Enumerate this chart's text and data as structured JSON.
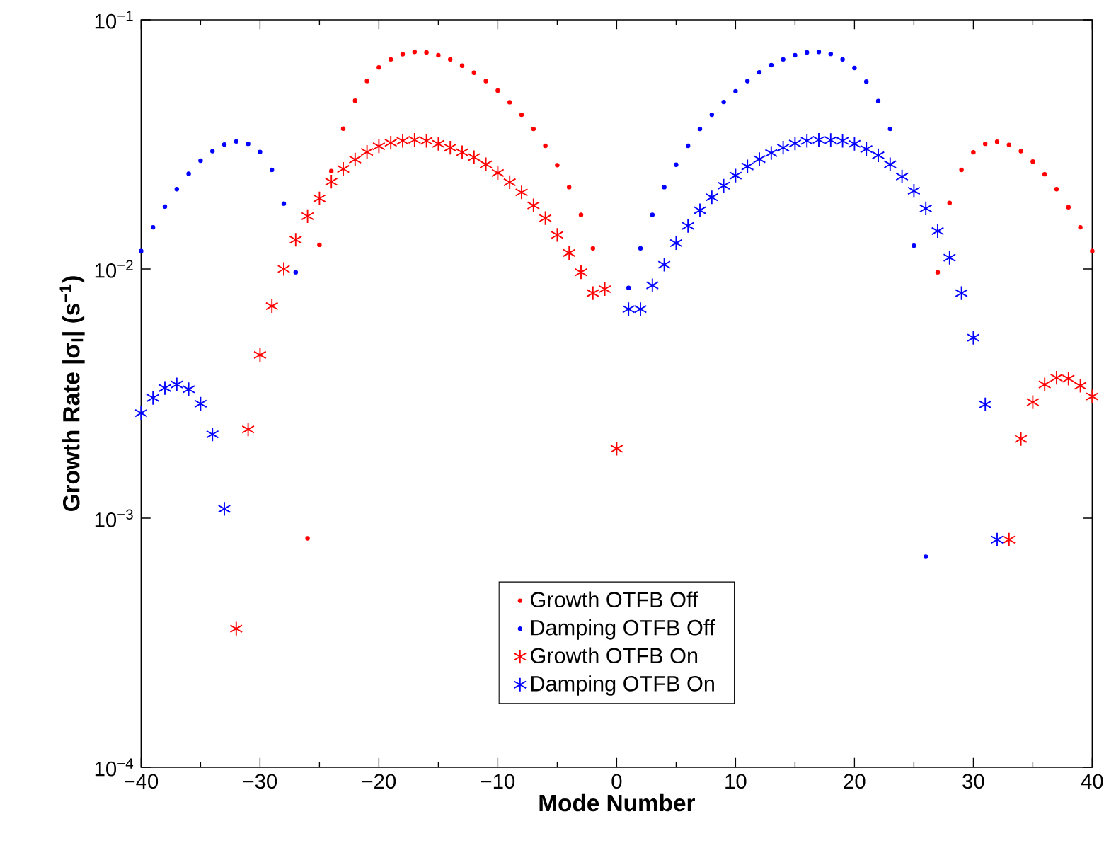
{
  "chart_data": {
    "type": "scatter",
    "xlabel": "Mode Number",
    "ylabel": "Growth Rate |σ$_{I}$| (s$^{−1}$)",
    "log": "y",
    "grid": false,
    "legend": "bottom",
    "xlim": [
      -40,
      40
    ],
    "ylim": [
      0.0001,
      0.1
    ],
    "xticks": [
      {
        "value": -40,
        "label": "−40"
      },
      {
        "value": -30,
        "label": "−30"
      },
      {
        "value": -20,
        "label": "−20"
      },
      {
        "value": -10,
        "label": "−10"
      },
      0,
      10,
      20,
      30,
      40
    ],
    "yticks": [
      {
        "value": 0.0001,
        "label": "10$^{−4}$"
      },
      {
        "value": 0.001,
        "label": "10$^{−3}$"
      },
      {
        "value": 0.01,
        "label": "10$^{−2}$"
      },
      {
        "value": 0.1,
        "label": "10$^{−1}$"
      }
    ],
    "series": [
      {
        "name": "Growth OTFB Off",
        "color": "#ff0000",
        "marker": "circle",
        "x": [
          -26,
          -25,
          -24,
          -23,
          -22,
          -21,
          -20,
          -19,
          -18,
          -17,
          -16,
          -15,
          -14,
          -13,
          -12,
          -11,
          -10,
          -9,
          -8,
          -7,
          -6,
          -5,
          -4,
          -3,
          -2,
          27,
          28,
          29,
          30,
          31,
          32,
          33,
          34,
          35,
          36,
          37,
          38,
          39,
          40
        ],
        "values": [
          0.00083,
          0.0125,
          0.0247,
          0.0366,
          0.0474,
          0.0568,
          0.0644,
          0.0694,
          0.0728,
          0.0744,
          0.074,
          0.0721,
          0.0694,
          0.0655,
          0.0613,
          0.0568,
          0.052,
          0.0467,
          0.0416,
          0.0365,
          0.0312,
          0.0261,
          0.0213,
          0.0165,
          0.0121,
          0.0097,
          0.0184,
          0.025,
          0.0294,
          0.0318,
          0.0324,
          0.0315,
          0.0297,
          0.027,
          0.024,
          0.0209,
          0.0177,
          0.0147,
          0.0118
        ]
      },
      {
        "name": "Damping OTFB Off",
        "color": "#0000ff",
        "marker": "circle",
        "x": [
          -40,
          -39,
          -38,
          -37,
          -36,
          -35,
          -34,
          -33,
          -32,
          -31,
          -30,
          -29,
          -28,
          -27,
          1,
          2,
          3,
          4,
          5,
          6,
          7,
          8,
          9,
          10,
          11,
          12,
          13,
          14,
          15,
          16,
          17,
          18,
          19,
          20,
          21,
          22,
          23,
          24,
          25,
          26
        ],
        "values": [
          0.0118,
          0.0147,
          0.0178,
          0.0209,
          0.0241,
          0.0272,
          0.0297,
          0.0316,
          0.0325,
          0.0318,
          0.0295,
          0.025,
          0.0183,
          0.0097,
          0.0084,
          0.0121,
          0.0165,
          0.0213,
          0.0262,
          0.0312,
          0.0365,
          0.0416,
          0.0468,
          0.0517,
          0.0568,
          0.0616,
          0.0658,
          0.0694,
          0.0721,
          0.074,
          0.0744,
          0.073,
          0.0694,
          0.0641,
          0.0565,
          0.0472,
          0.0365,
          null,
          0.0124,
          0.0007
        ]
      },
      {
        "name": "Growth OTFB On",
        "color": "#ff0000",
        "marker": "cross",
        "x": [
          -32,
          -31,
          -30,
          -29,
          -28,
          -27,
          -26,
          -25,
          -24,
          -23,
          -22,
          -21,
          -20,
          -19,
          -18,
          -17,
          -16,
          -15,
          -14,
          -13,
          -12,
          -11,
          -10,
          -9,
          -8,
          -7,
          -6,
          -5,
          -4,
          -3,
          -2,
          -1,
          0,
          33,
          34,
          35,
          36,
          37,
          38,
          39,
          40
        ],
        "values": [
          0.00036,
          0.00227,
          0.00452,
          0.0071,
          0.01,
          0.0131,
          0.0163,
          0.0192,
          0.0224,
          0.0252,
          0.0275,
          0.0295,
          0.0311,
          0.0321,
          0.0327,
          0.033,
          0.0327,
          0.0318,
          0.0307,
          0.0294,
          0.0281,
          0.0263,
          0.0243,
          0.0223,
          0.0203,
          0.018,
          0.016,
          0.0137,
          0.0116,
          0.0097,
          0.008,
          0.0083,
          0.0019,
          0.00082,
          0.00208,
          0.00292,
          0.00344,
          0.00366,
          0.00363,
          0.0034,
          0.00308
        ]
      },
      {
        "name": "Damping OTFB On",
        "color": "#0000ff",
        "marker": "cross",
        "x": [
          -40,
          -39,
          -38,
          -37,
          -36,
          -35,
          -34,
          -33,
          1,
          2,
          3,
          4,
          5,
          6,
          7,
          8,
          9,
          10,
          11,
          12,
          13,
          14,
          15,
          16,
          17,
          18,
          19,
          20,
          21,
          22,
          23,
          24,
          25,
          26,
          27,
          28,
          29,
          30,
          31,
          32
        ],
        "values": [
          0.00264,
          0.00304,
          0.00333,
          0.00344,
          0.00329,
          0.00288,
          0.00217,
          0.00109,
          0.0069,
          0.0069,
          0.0086,
          0.0104,
          0.0127,
          0.0149,
          0.0172,
          0.0194,
          0.0216,
          0.0237,
          0.0258,
          0.0276,
          0.0292,
          0.0307,
          0.0319,
          0.0327,
          0.033,
          0.0329,
          0.0327,
          0.0318,
          0.0303,
          0.0286,
          0.0263,
          0.0235,
          0.0206,
          0.0175,
          0.0142,
          0.0111,
          0.008,
          0.0053,
          0.00286,
          0.00082
        ]
      }
    ]
  }
}
